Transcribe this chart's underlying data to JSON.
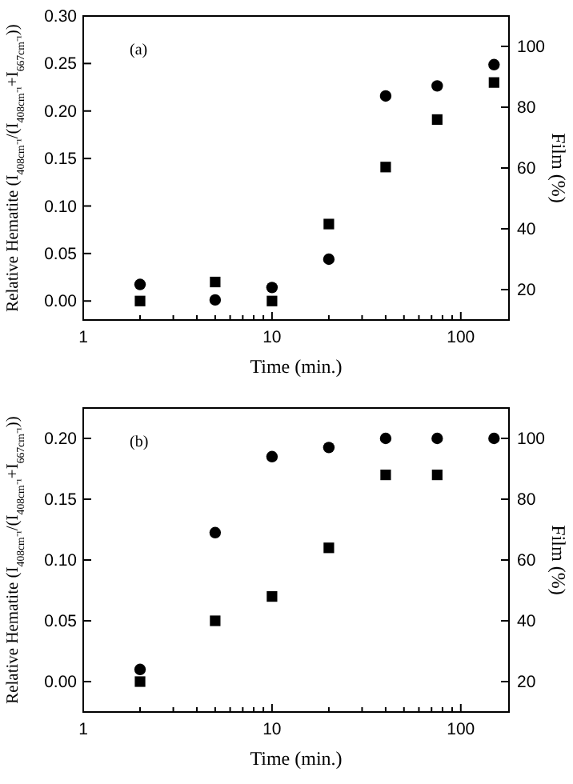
{
  "chart_data": [
    {
      "type": "scatter",
      "annotations": [
        "(a)"
      ],
      "xlabel": "Time (min.)",
      "ylabel": "Relative Hematite (I$_{408cm⁻¹}$/(I$_{408cm⁻¹}$+I$_{667cm⁻¹}$))",
      "y2label": "Film (%)",
      "log": "x",
      "x": [
        2,
        5,
        10,
        20,
        40,
        75,
        150
      ],
      "xlim": [
        1,
        180
      ],
      "xticks": [
        1,
        {
          "value": 2,
          "label": null
        },
        {
          "value": 3,
          "label": null
        },
        {
          "value": 4,
          "label": null
        },
        {
          "value": 5,
          "label": null
        },
        {
          "value": 6,
          "label": null
        },
        {
          "value": 7,
          "label": null
        },
        {
          "value": 8,
          "label": null
        },
        {
          "value": 9,
          "label": null
        },
        10,
        {
          "value": 20,
          "label": null
        },
        {
          "value": 30,
          "label": null
        },
        {
          "value": 40,
          "label": null
        },
        {
          "value": 50,
          "label": null
        },
        {
          "value": 60,
          "label": null
        },
        {
          "value": 70,
          "label": null
        },
        {
          "value": 80,
          "label": null
        },
        {
          "value": 90,
          "label": null
        },
        100
      ],
      "ylim": [
        -0.02,
        0.3
      ],
      "yticks": [
        {
          "value": 0,
          "label": "0.00"
        },
        {
          "value": 0.05,
          "label": "0.05"
        },
        {
          "value": 0.1,
          "label": "0.10"
        },
        {
          "value": 0.15,
          "label": "0.15"
        },
        {
          "value": 0.2,
          "label": "0.20"
        },
        {
          "value": 0.25,
          "label": "0.25"
        },
        {
          "value": 0.3,
          "label": "0.30"
        }
      ],
      "y2lim": [
        10,
        110
      ],
      "y2ticks": [
        20,
        40,
        60,
        80,
        100
      ],
      "grid": false,
      "series": [
        {
          "color": "#000000",
          "marker": "square",
          "values": [
            0,
            0.02,
            0,
            0.081,
            0.141,
            0.191,
            0.23
          ]
        },
        {
          "color": "#000000",
          "marker": "circle",
          "axis": "y2",
          "values": [
            21.7,
            16.6,
            20.7,
            30,
            83.7,
            87,
            94
          ]
        }
      ]
    },
    {
      "type": "scatter",
      "annotations": [
        "(b)"
      ],
      "xlabel": "Time (min.)",
      "ylabel": "Relative Hematite (I$_{408cm⁻¹}$/(I$_{408cm⁻¹}$+I$_{667cm⁻¹}$))",
      "y2label": "Film (%)",
      "log": "x",
      "x": [
        2,
        5,
        10,
        20,
        40,
        75,
        150
      ],
      "xlim": [
        1,
        180
      ],
      "xticks": [
        1,
        {
          "value": 2,
          "label": null
        },
        {
          "value": 3,
          "label": null
        },
        {
          "value": 4,
          "label": null
        },
        {
          "value": 5,
          "label": null
        },
        {
          "value": 6,
          "label": null
        },
        {
          "value": 7,
          "label": null
        },
        {
          "value": 8,
          "label": null
        },
        {
          "value": 9,
          "label": null
        },
        10,
        {
          "value": 20,
          "label": null
        },
        {
          "value": 30,
          "label": null
        },
        {
          "value": 40,
          "label": null
        },
        {
          "value": 50,
          "label": null
        },
        {
          "value": 60,
          "label": null
        },
        {
          "value": 70,
          "label": null
        },
        {
          "value": 80,
          "label": null
        },
        {
          "value": 90,
          "label": null
        },
        100
      ],
      "ylim": [
        -0.025,
        0.225
      ],
      "yticks": [
        {
          "value": 0,
          "label": "0.00"
        },
        {
          "value": 0.05,
          "label": "0.05"
        },
        {
          "value": 0.1,
          "label": "0.10"
        },
        {
          "value": 0.15,
          "label": "0.15"
        },
        {
          "value": 0.2,
          "label": "0.20"
        }
      ],
      "y2lim": [
        10,
        110
      ],
      "y2ticks": [
        20,
        40,
        60,
        80,
        100
      ],
      "grid": false,
      "series": [
        {
          "color": "#000000",
          "marker": "square",
          "values": [
            0,
            0.05,
            0.07,
            0.11,
            0.17,
            0.17,
            null
          ]
        },
        {
          "color": "#000000",
          "marker": "circle",
          "axis": "y2",
          "values": [
            24,
            69,
            94,
            97,
            100,
            100,
            100
          ]
        }
      ]
    }
  ]
}
